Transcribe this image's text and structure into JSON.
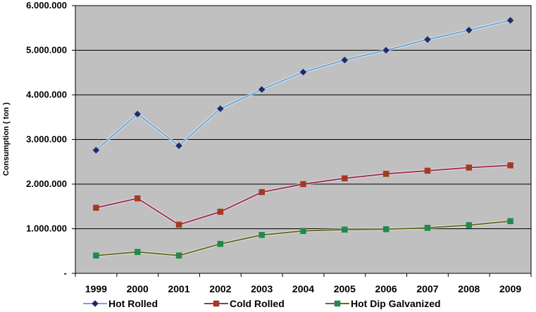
{
  "chart_data": {
    "type": "line",
    "title": "",
    "xlabel": "",
    "ylabel": "Consumption ( ton )",
    "categories": [
      "1999",
      "2000",
      "2001",
      "2002",
      "2003",
      "2004",
      "2005",
      "2006",
      "2007",
      "2008",
      "2009"
    ],
    "ylim": [
      0,
      6000000
    ],
    "yticks": [
      0,
      1000000,
      2000000,
      3000000,
      4000000,
      5000000,
      6000000
    ],
    "ytick_labels": [
      "-",
      "1.000.000",
      "2.000.000",
      "3.000.000",
      "4.000.000",
      "5.000.000",
      "6.000.000"
    ],
    "grid": true,
    "legend_position": "bottom",
    "plot_background": "#c0c0c0",
    "series": [
      {
        "name": "Hot Rolled",
        "line_color": "#6fa8dc",
        "marker_color": "#1f2a6b",
        "marker": "diamond",
        "values": [
          2760000,
          3570000,
          2860000,
          3690000,
          4120000,
          4510000,
          4780000,
          5000000,
          5240000,
          5450000,
          5670000
        ]
      },
      {
        "name": "Cold Rolled",
        "line_color": "#a03060",
        "marker_color": "#a33a22",
        "marker": "square",
        "values": [
          1470000,
          1680000,
          1090000,
          1380000,
          1820000,
          2000000,
          2130000,
          2230000,
          2300000,
          2370000,
          2420000
        ]
      },
      {
        "name": "Hot Dip Galvanized",
        "line_color": "#6b6b2a",
        "marker_color": "#1f8a4a",
        "marker": "square",
        "values": [
          400000,
          480000,
          400000,
          660000,
          860000,
          950000,
          980000,
          990000,
          1020000,
          1080000,
          1170000
        ]
      }
    ]
  }
}
